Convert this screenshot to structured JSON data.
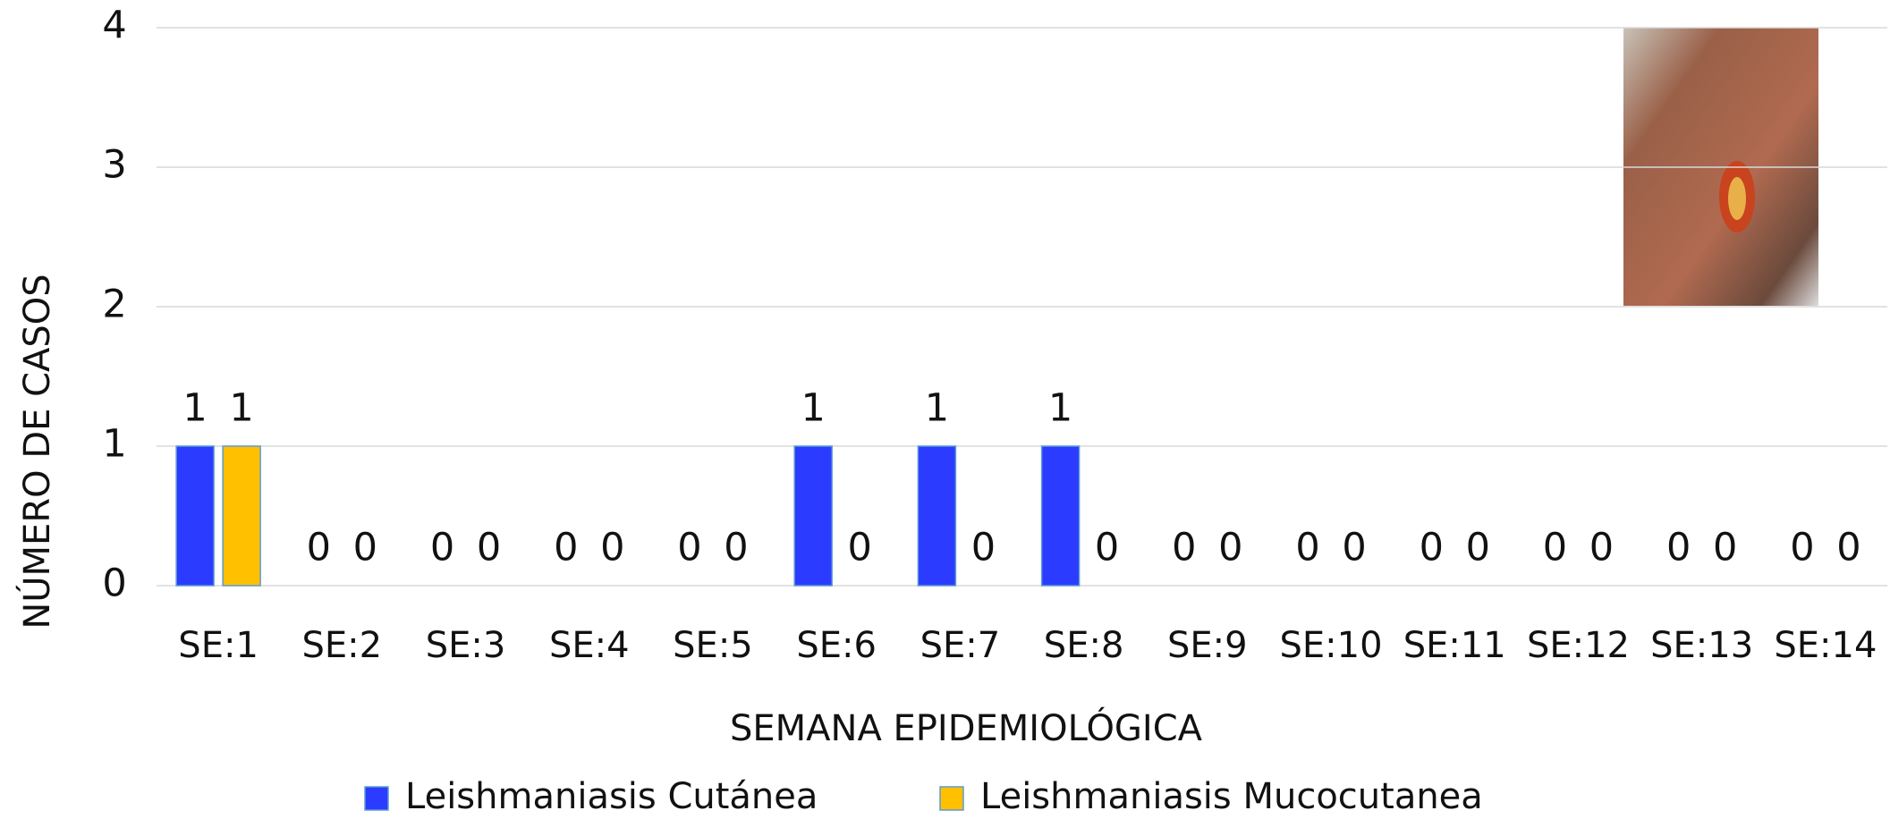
{
  "chart_data": {
    "type": "bar",
    "x_label": "SEMANA EPIDEMIOLÓGICA",
    "y_label": "NÚMERO DE CASOS",
    "categories": [
      "SE:1",
      "SE:2",
      "SE:3",
      "SE:4",
      "SE:5",
      "SE:6",
      "SE:7",
      "SE:8",
      "SE:9",
      "SE:10",
      "SE:11",
      "SE:12",
      "SE:13",
      "SE:14"
    ],
    "series": [
      {
        "name": "Leishmaniasis Cutánea",
        "color": "#2b3bff",
        "values": [
          1,
          0,
          0,
          0,
          0,
          1,
          1,
          1,
          0,
          0,
          0,
          0,
          0,
          0
        ]
      },
      {
        "name": "Leishmaniasis Mucocutanea",
        "color": "#ffc000",
        "values": [
          1,
          0,
          0,
          0,
          0,
          0,
          0,
          0,
          0,
          0,
          0,
          0,
          0,
          0
        ]
      }
    ],
    "ylim": [
      0,
      4
    ],
    "yticks": [
      0,
      1,
      2,
      3,
      4
    ],
    "grid": true
  }
}
